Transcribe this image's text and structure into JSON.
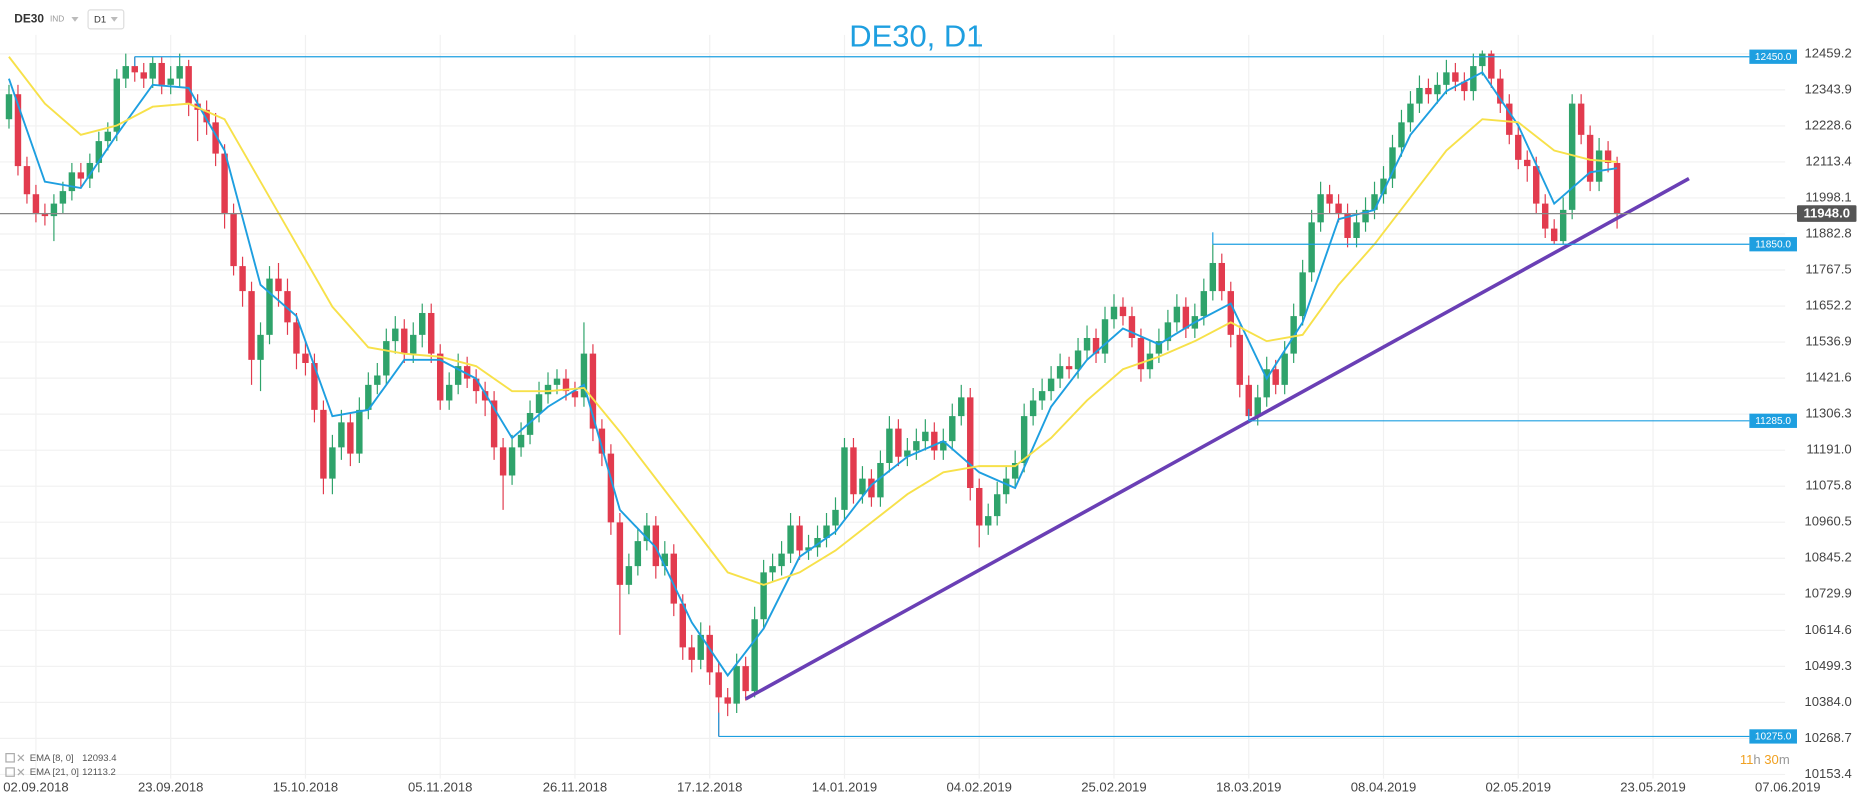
{
  "chart_data": {
    "type": "candlestick",
    "title": "DE30, D1",
    "symbol": "DE30",
    "instrument_type": "IND",
    "timeframe": "D1",
    "up_color": "#2fa36b",
    "down_color": "#e23b4e",
    "grid": true,
    "xlim": [
      -1,
      197.7
    ],
    "xticks": [
      {
        "value": 3,
        "label": "02.09.2018"
      },
      {
        "value": 18,
        "label": "23.09.2018"
      },
      {
        "value": 33,
        "label": "15.10.2018"
      },
      {
        "value": 48,
        "label": "05.11.2018"
      },
      {
        "value": 63,
        "label": "26.11.2018"
      },
      {
        "value": 78,
        "label": "17.12.2018"
      },
      {
        "value": 93,
        "label": "14.01.2019"
      },
      {
        "value": 108,
        "label": "04.02.2019"
      },
      {
        "value": 123,
        "label": "25.02.2019"
      },
      {
        "value": 138,
        "label": "18.03.2019"
      },
      {
        "value": 153,
        "label": "08.04.2019"
      },
      {
        "value": 168,
        "label": "02.05.2019"
      },
      {
        "value": 183,
        "label": "23.05.2019"
      },
      {
        "value": 198,
        "label": "07.06.2019"
      }
    ],
    "ylim": [
      10140,
      12520
    ],
    "yticks": [
      12459.2,
      12343.9,
      12228.6,
      12113.4,
      11998.1,
      11882.8,
      11767.5,
      11652.2,
      11536.9,
      11421.6,
      11306.3,
      {
        "value": 11191,
        "label": "11191.0"
      },
      11075.8,
      10960.5,
      10845.2,
      10729.9,
      10614.6,
      10499.3,
      {
        "value": 10384,
        "label": "10384.0"
      },
      10268.7,
      10153.4
    ],
    "open": [
      12250,
      12330,
      12100,
      12010,
      11950,
      11940,
      11980,
      12020,
      12080,
      12060,
      12110,
      12180,
      12210,
      12380,
      12420,
      12400,
      12380,
      12430,
      12360,
      12380,
      12420,
      12300,
      12280,
      12240,
      12140,
      11950,
      11780,
      11700,
      11480,
      11560,
      11740,
      11700,
      11600,
      11500,
      11470,
      11320,
      11100,
      11200,
      11280,
      11180,
      11320,
      11400,
      11430,
      11540,
      11580,
      11500,
      11560,
      11630,
      11500,
      11350,
      11400,
      11460,
      11420,
      11380,
      11350,
      11200,
      11110,
      11200,
      11240,
      11310,
      11370,
      11400,
      11420,
      11380,
      11360,
      11500,
      11260,
      11180,
      10960,
      10760,
      10820,
      10900,
      10950,
      10820,
      10860,
      10700,
      10560,
      10520,
      10600,
      10480,
      10400,
      10380,
      10500,
      10420,
      10650,
      10800,
      10820,
      10860,
      10950,
      10870,
      10880,
      10910,
      10950,
      11000,
      11200,
      11050,
      11100,
      11040,
      11150,
      11260,
      11170,
      11190,
      11220,
      11250,
      11190,
      11220,
      11300,
      11360,
      11070,
      10950,
      10980,
      11050,
      11100,
      11150,
      11300,
      11350,
      11380,
      11420,
      11460,
      11450,
      11510,
      11550,
      11500,
      11610,
      11650,
      11620,
      11550,
      11450,
      11500,
      11540,
      11600,
      11650,
      11580,
      11620,
      11700,
      11790,
      11700,
      11560,
      11400,
      11300,
      11360,
      11450,
      11400,
      11500,
      11620,
      11760,
      11920,
      12010,
      11980,
      11950,
      11870,
      11920,
      11960,
      12010,
      12060,
      12160,
      12240,
      12300,
      12350,
      12330,
      12360,
      12400,
      12370,
      12340,
      12420,
      12460,
      12380,
      12300,
      12200,
      12120,
      12100,
      11980,
      11900,
      11860,
      11960,
      12300,
      12200,
      12050,
      12150,
      12110
    ],
    "high": [
      12360,
      12360,
      12130,
      12040,
      11980,
      12010,
      12050,
      12110,
      12110,
      12140,
      12210,
      12240,
      12410,
      12460,
      12450,
      12430,
      12450,
      12450,
      12420,
      12460,
      12440,
      12330,
      12310,
      12270,
      12170,
      11980,
      11810,
      11730,
      11600,
      11780,
      11790,
      11740,
      11630,
      11540,
      11500,
      11350,
      11240,
      11320,
      11310,
      11360,
      11440,
      11470,
      11580,
      11620,
      11610,
      11600,
      11660,
      11660,
      11530,
      11440,
      11500,
      11490,
      11450,
      11410,
      11380,
      11230,
      11240,
      11280,
      11350,
      11410,
      11440,
      11450,
      11450,
      11410,
      11600,
      11530,
      11290,
      11210,
      10990,
      10860,
      10940,
      10990,
      10980,
      10900,
      10890,
      10730,
      10600,
      10640,
      10630,
      10510,
      10430,
      10540,
      10530,
      10690,
      10840,
      10860,
      10900,
      10990,
      10980,
      10920,
      10950,
      10990,
      11040,
      11230,
      11230,
      11140,
      11130,
      11190,
      11300,
      11290,
      11230,
      11260,
      11290,
      11280,
      11260,
      11340,
      11400,
      11390,
      11100,
      11020,
      11090,
      11140,
      11190,
      11340,
      11390,
      11420,
      11460,
      11500,
      11490,
      11550,
      11590,
      11580,
      11650,
      11690,
      11680,
      11650,
      11580,
      11540,
      11580,
      11640,
      11690,
      11680,
      11660,
      11740,
      11850,
      11820,
      11730,
      11590,
      11430,
      11400,
      11490,
      11480,
      11540,
      11660,
      11800,
      11960,
      12050,
      12040,
      12010,
      11980,
      11960,
      12000,
      12050,
      12100,
      12200,
      12280,
      12340,
      12390,
      12380,
      12400,
      12440,
      12430,
      12400,
      12460,
      12470,
      12470,
      12410,
      12330,
      12230,
      12150,
      12130,
      12010,
      11930,
      12000,
      12330,
      12330,
      12230,
      12190,
      12180,
      12130
    ],
    "low": [
      12220,
      12070,
      11980,
      11920,
      11910,
      11860,
      11950,
      11990,
      12030,
      12030,
      12080,
      12150,
      12180,
      12350,
      12370,
      12350,
      12350,
      12330,
      12330,
      12350,
      12260,
      12180,
      12200,
      12100,
      11900,
      11750,
      11650,
      11400,
      11380,
      11530,
      11650,
      11560,
      11450,
      11430,
      11280,
      11050,
      11050,
      11160,
      11140,
      11150,
      11290,
      11370,
      11400,
      11500,
      11470,
      11470,
      11520,
      11470,
      11320,
      11320,
      11370,
      11390,
      11340,
      11300,
      11160,
      11000,
      11080,
      11170,
      11210,
      11280,
      11340,
      11370,
      11350,
      11330,
      11330,
      11220,
      11140,
      10920,
      10600,
      10730,
      10790,
      10870,
      10780,
      10790,
      10660,
      10520,
      10480,
      10490,
      10440,
      10275,
      10340,
      10350,
      10390,
      10400,
      10620,
      10770,
      10790,
      10830,
      10840,
      10840,
      10850,
      10880,
      10920,
      10970,
      11020,
      11020,
      11010,
      11010,
      11120,
      11140,
      11140,
      11160,
      11190,
      11160,
      11160,
      11190,
      11270,
      11030,
      10880,
      10920,
      10950,
      11020,
      11070,
      11120,
      11270,
      11320,
      11350,
      11390,
      11420,
      11420,
      11480,
      11470,
      11470,
      11580,
      11590,
      11520,
      11410,
      11420,
      11470,
      11510,
      11570,
      11550,
      11550,
      11590,
      11670,
      11670,
      11520,
      11360,
      11285,
      11270,
      11330,
      11370,
      11370,
      11470,
      11590,
      11730,
      11890,
      11950,
      11920,
      11840,
      11840,
      11890,
      11930,
      11980,
      12030,
      12130,
      12210,
      12270,
      12300,
      12300,
      12330,
      12340,
      12310,
      12310,
      12390,
      12350,
      12270,
      12170,
      12090,
      12050,
      11950,
      11870,
      11850,
      11850,
      11930,
      12170,
      12020,
      12020,
      12080,
      11900
    ],
    "close": [
      12330,
      12100,
      12010,
      11950,
      11940,
      11980,
      12020,
      12080,
      12060,
      12110,
      12180,
      12210,
      12380,
      12420,
      12400,
      12380,
      12430,
      12360,
      12380,
      12420,
      12300,
      12280,
      12240,
      12140,
      11950,
      11780,
      11700,
      11480,
      11560,
      11740,
      11700,
      11600,
      11500,
      11470,
      11320,
      11100,
      11200,
      11280,
      11180,
      11320,
      11400,
      11430,
      11540,
      11580,
      11500,
      11560,
      11630,
      11500,
      11350,
      11400,
      11460,
      11420,
      11380,
      11350,
      11200,
      11110,
      11200,
      11240,
      11310,
      11370,
      11400,
      11420,
      11380,
      11360,
      11500,
      11260,
      11180,
      10960,
      10760,
      10820,
      10900,
      10950,
      10820,
      10860,
      10700,
      10560,
      10520,
      10600,
      10480,
      10400,
      10380,
      10500,
      10420,
      10650,
      10800,
      10820,
      10860,
      10950,
      10870,
      10880,
      10910,
      10950,
      11000,
      11200,
      11050,
      11100,
      11040,
      11150,
      11260,
      11170,
      11190,
      11220,
      11250,
      11190,
      11220,
      11300,
      11360,
      11070,
      10950,
      10980,
      11050,
      11100,
      11150,
      11300,
      11350,
      11380,
      11420,
      11460,
      11450,
      11510,
      11550,
      11500,
      11610,
      11650,
      11620,
      11550,
      11450,
      11500,
      11540,
      11600,
      11650,
      11580,
      11620,
      11700,
      11790,
      11700,
      11560,
      11400,
      11300,
      11360,
      11450,
      11400,
      11500,
      11620,
      11760,
      11920,
      12010,
      11980,
      11950,
      11870,
      11920,
      11960,
      12010,
      12060,
      12160,
      12240,
      12300,
      12350,
      12330,
      12360,
      12400,
      12370,
      12340,
      12420,
      12460,
      12380,
      12300,
      12200,
      12120,
      12100,
      11980,
      11900,
      11860,
      11960,
      12300,
      12200,
      12050,
      12150,
      12110,
      11948
    ],
    "series": [
      {
        "name": "EMA [8, 0]",
        "color": "#1e9fe0",
        "x": [
          0,
          4,
          8,
          12,
          16,
          20,
          24,
          28,
          32,
          36,
          40,
          44,
          48,
          52,
          56,
          60,
          64,
          68,
          72,
          76,
          80,
          84,
          88,
          92,
          96,
          100,
          104,
          108,
          112,
          116,
          120,
          124,
          128,
          132,
          136,
          140,
          144,
          148,
          152,
          156,
          160,
          164,
          168,
          172,
          176,
          179
        ],
        "values": [
          12380,
          12050,
          12030,
          12200,
          12360,
          12350,
          12150,
          11720,
          11620,
          11300,
          11320,
          11480,
          11480,
          11420,
          11230,
          11330,
          11400,
          11000,
          10880,
          10640,
          10470,
          10620,
          10850,
          10930,
          11080,
          11170,
          11220,
          11120,
          11070,
          11330,
          11480,
          11580,
          11530,
          11600,
          11660,
          11420,
          11600,
          11930,
          11960,
          12200,
          12340,
          12400,
          12230,
          11980,
          12080,
          12093.4
        ]
      },
      {
        "name": "EMA [21, 0]",
        "color": "#f7e14a",
        "x": [
          0,
          4,
          8,
          12,
          16,
          20,
          24,
          28,
          32,
          36,
          40,
          44,
          48,
          52,
          56,
          60,
          64,
          68,
          72,
          76,
          80,
          84,
          88,
          92,
          96,
          100,
          104,
          108,
          112,
          116,
          120,
          124,
          128,
          132,
          136,
          140,
          144,
          148,
          152,
          156,
          160,
          164,
          168,
          172,
          176,
          179
        ],
        "values": [
          12450,
          12300,
          12200,
          12230,
          12290,
          12300,
          12250,
          12050,
          11850,
          11650,
          11520,
          11500,
          11490,
          11460,
          11380,
          11380,
          11390,
          11250,
          11100,
          10950,
          10800,
          10760,
          10800,
          10870,
          10960,
          11050,
          11120,
          11140,
          11140,
          11230,
          11350,
          11450,
          11490,
          11540,
          11600,
          11540,
          11560,
          11720,
          11850,
          12000,
          12150,
          12250,
          12240,
          12150,
          12120,
          12113.2
        ]
      }
    ],
    "levels": [
      {
        "value": 12450,
        "label": "12450.0",
        "from": 14,
        "color": "#1e9fe0"
      },
      {
        "value": 11850,
        "label": "11850.0",
        "from": 134,
        "color": "#1e9fe0"
      },
      {
        "value": 11285,
        "label": "11285.0",
        "from": 138,
        "color": "#1e9fe0"
      },
      {
        "value": 10275,
        "label": "10275.0",
        "from": 79,
        "color": "#1e9fe0"
      }
    ],
    "current": {
      "value": 11948,
      "label": "11948.0"
    },
    "trendline": {
      "x": [
        82,
        187
      ],
      "values": [
        10395,
        12060
      ],
      "color": "#6a3fb5"
    },
    "countdown": [
      "11",
      "h",
      "30",
      "m"
    ]
  }
}
